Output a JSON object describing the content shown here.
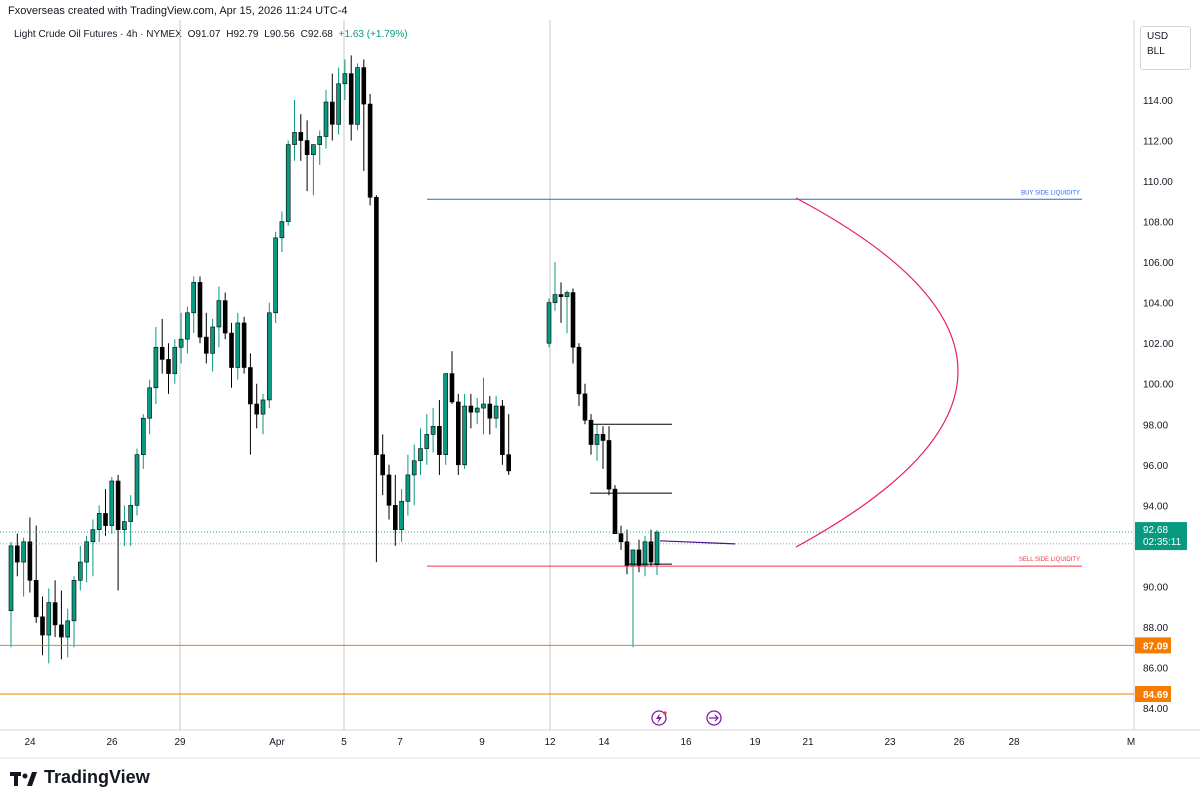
{
  "header": {
    "created_by": "Fxoverseas created with TradingView.com, Apr 15, 2026 11:24 UTC-4"
  },
  "legend": {
    "symbol": "Light Crude Oil Futures · 4h · NYMEX",
    "open": "O91.07",
    "high": "H92.79",
    "low": "L90.56",
    "close": "C92.68",
    "change": "+1.63 (+1.79%)"
  },
  "badges": {
    "currency": "USD",
    "unit": "BLL"
  },
  "footer": {
    "brand": "TradingView"
  },
  "colors": {
    "up": "#089981",
    "down": "#000000",
    "buy_line": "#2962ff",
    "sell_line": "#f23645",
    "orange": "#f57c00",
    "curve": "#e91e63"
  },
  "chart_data": {
    "type": "candlestick",
    "price_axis": {
      "min": 83,
      "max": 116,
      "ticks": [
        84.0,
        86.0,
        88.0,
        90.0,
        92.0,
        94.0,
        96.0,
        98.0,
        100.0,
        102.0,
        104.0,
        106.0,
        108.0,
        110.0,
        112.0,
        114.0
      ],
      "tick_labels": [
        "84.00",
        "86.00",
        "88.00",
        "90.00",
        "94.00",
        "96.00",
        "98.00",
        "100.00",
        "102.00",
        "104.00",
        "106.00",
        "108.00",
        "110.00",
        "112.00",
        "114.00"
      ]
    },
    "time_labels": [
      "24",
      "26",
      "29",
      "Apr",
      "5",
      "7",
      "9",
      "12",
      "14",
      "16",
      "19",
      "21",
      "23",
      "26",
      "28",
      "M"
    ],
    "current_price": {
      "value": 92.68,
      "label": "92.68",
      "countdown": "02:35:11"
    },
    "levels": [
      {
        "label": "87.09",
        "value": 87.09
      },
      {
        "label": "84.69",
        "value": 84.69
      }
    ],
    "annotations": {
      "buy_side": {
        "text": "BUY SIDE LIQUIDITY",
        "value": 109.1
      },
      "sell_side": {
        "text": "SELL SIDE LIQUIDITY",
        "value": 91.0
      }
    },
    "candles": [
      [
        88.8,
        92.2,
        87.0,
        92.0
      ],
      [
        92.0,
        92.6,
        90.5,
        91.2
      ],
      [
        91.2,
        92.4,
        89.5,
        92.2
      ],
      [
        92.2,
        93.4,
        89.7,
        90.3
      ],
      [
        90.3,
        93.0,
        88.2,
        88.5
      ],
      [
        88.5,
        89.5,
        86.6,
        87.6
      ],
      [
        87.6,
        89.9,
        86.2,
        89.2
      ],
      [
        89.2,
        90.3,
        87.5,
        88.1
      ],
      [
        88.1,
        89.8,
        86.4,
        87.5
      ],
      [
        87.5,
        88.9,
        86.5,
        88.3
      ],
      [
        88.3,
        90.5,
        87.0,
        90.3
      ],
      [
        90.3,
        92.0,
        89.8,
        91.2
      ],
      [
        91.2,
        92.5,
        90.2,
        92.2
      ],
      [
        92.2,
        93.3,
        90.5,
        92.8
      ],
      [
        92.8,
        94.0,
        92.2,
        93.6
      ],
      [
        93.6,
        94.8,
        92.5,
        93.0
      ],
      [
        93.0,
        95.4,
        92.6,
        95.2
      ],
      [
        95.2,
        95.5,
        89.8,
        92.8
      ],
      [
        92.8,
        94.0,
        92.0,
        93.2
      ],
      [
        93.2,
        94.5,
        92.0,
        94.0
      ],
      [
        94.0,
        96.8,
        93.5,
        96.5
      ],
      [
        96.5,
        98.5,
        95.8,
        98.3
      ],
      [
        98.3,
        100.2,
        97.5,
        99.8
      ],
      [
        99.8,
        102.8,
        99.0,
        101.8
      ],
      [
        101.8,
        103.2,
        100.5,
        101.2
      ],
      [
        101.2,
        102.0,
        99.5,
        100.5
      ],
      [
        100.5,
        102.2,
        100.0,
        101.8
      ],
      [
        101.8,
        103.5,
        101.0,
        102.2
      ],
      [
        102.2,
        103.8,
        101.5,
        103.5
      ],
      [
        103.5,
        105.3,
        102.5,
        105.0
      ],
      [
        105.0,
        105.3,
        102.0,
        102.3
      ],
      [
        102.3,
        103.5,
        101.0,
        101.5
      ],
      [
        101.5,
        103.2,
        100.6,
        102.8
      ],
      [
        102.8,
        104.8,
        101.8,
        104.1
      ],
      [
        104.1,
        104.5,
        102.2,
        102.5
      ],
      [
        102.5,
        103.0,
        99.8,
        100.8
      ],
      [
        100.8,
        103.5,
        100.2,
        103.0
      ],
      [
        103.0,
        103.3,
        100.5,
        100.8
      ],
      [
        100.8,
        101.5,
        96.5,
        99.0
      ],
      [
        99.0,
        100.0,
        97.8,
        98.5
      ],
      [
        98.5,
        99.5,
        97.5,
        99.2
      ],
      [
        99.2,
        104.0,
        98.8,
        103.5
      ],
      [
        103.5,
        107.5,
        103.0,
        107.2
      ],
      [
        107.2,
        108.5,
        106.5,
        108.0
      ],
      [
        108.0,
        112.0,
        107.8,
        111.8
      ],
      [
        111.8,
        114.0,
        111.0,
        112.4
      ],
      [
        112.4,
        113.3,
        111.0,
        112.0
      ],
      [
        112.0,
        113.0,
        109.5,
        111.3
      ],
      [
        111.3,
        111.8,
        109.3,
        111.8
      ],
      [
        111.8,
        112.5,
        110.8,
        112.2
      ],
      [
        112.2,
        114.5,
        111.6,
        113.9
      ],
      [
        113.9,
        115.3,
        112.0,
        112.8
      ],
      [
        112.8,
        115.6,
        112.3,
        114.8
      ],
      [
        114.8,
        116.0,
        114.0,
        115.3
      ],
      [
        115.3,
        116.2,
        112.0,
        112.8
      ],
      [
        112.8,
        115.8,
        112.5,
        115.6
      ],
      [
        115.6,
        116.0,
        110.5,
        113.8
      ],
      [
        113.8,
        114.3,
        108.8,
        109.2
      ],
      [
        109.2,
        109.3,
        91.2,
        96.5
      ],
      [
        96.5,
        97.5,
        94.5,
        95.5
      ],
      [
        95.5,
        96.0,
        93.3,
        94.0
      ],
      [
        94.0,
        95.5,
        92.0,
        92.8
      ],
      [
        92.8,
        94.8,
        92.2,
        94.2
      ],
      [
        94.2,
        96.5,
        93.5,
        95.5
      ],
      [
        95.5,
        97.0,
        94.0,
        96.2
      ],
      [
        96.2,
        97.8,
        95.5,
        96.8
      ],
      [
        96.8,
        98.5,
        96.0,
        97.5
      ],
      [
        97.5,
        98.8,
        96.6,
        97.9
      ],
      [
        97.9,
        99.2,
        95.5,
        96.5
      ],
      [
        96.5,
        100.5,
        96.0,
        100.5
      ],
      [
        100.5,
        101.6,
        99.0,
        99.1
      ],
      [
        99.1,
        99.5,
        95.5,
        96.0
      ],
      [
        96.0,
        99.5,
        95.8,
        98.9
      ],
      [
        98.9,
        99.5,
        97.8,
        98.6
      ],
      [
        98.6,
        99.3,
        98.0,
        98.8
      ],
      [
        98.8,
        100.3,
        97.5,
        99.0
      ],
      [
        99.0,
        99.4,
        97.5,
        98.3
      ],
      [
        98.3,
        99.4,
        97.8,
        98.9
      ],
      [
        98.9,
        99.2,
        96.0,
        96.5
      ],
      [
        96.5,
        98.5,
        95.5,
        95.7
      ],
      [
        102.0,
        104.2,
        101.8,
        104.0
      ],
      [
        104.0,
        106.0,
        103.6,
        104.4
      ],
      [
        104.4,
        105.0,
        103.0,
        104.3
      ],
      [
        104.3,
        104.6,
        102.5,
        104.5
      ],
      [
        104.5,
        104.7,
        101.0,
        101.8
      ],
      [
        101.8,
        102.0,
        98.9,
        99.5
      ],
      [
        99.5,
        100.0,
        98.0,
        98.2
      ],
      [
        98.2,
        98.5,
        96.5,
        97.0
      ],
      [
        97.0,
        98.0,
        96.2,
        97.5
      ],
      [
        97.5,
        97.9,
        95.8,
        97.2
      ],
      [
        97.2,
        97.9,
        94.5,
        94.8
      ],
      [
        94.8,
        95.0,
        92.6,
        92.6
      ],
      [
        92.6,
        93.0,
        91.8,
        92.2
      ],
      [
        92.2,
        92.8,
        90.6,
        91.0
      ],
      [
        91.0,
        91.8,
        87.0,
        91.8
      ],
      [
        91.8,
        92.3,
        90.7,
        91.0
      ],
      [
        91.0,
        92.5,
        90.5,
        92.2
      ],
      [
        92.2,
        92.8,
        91.0,
        91.2
      ],
      [
        91.07,
        92.79,
        90.56,
        92.68
      ]
    ]
  }
}
